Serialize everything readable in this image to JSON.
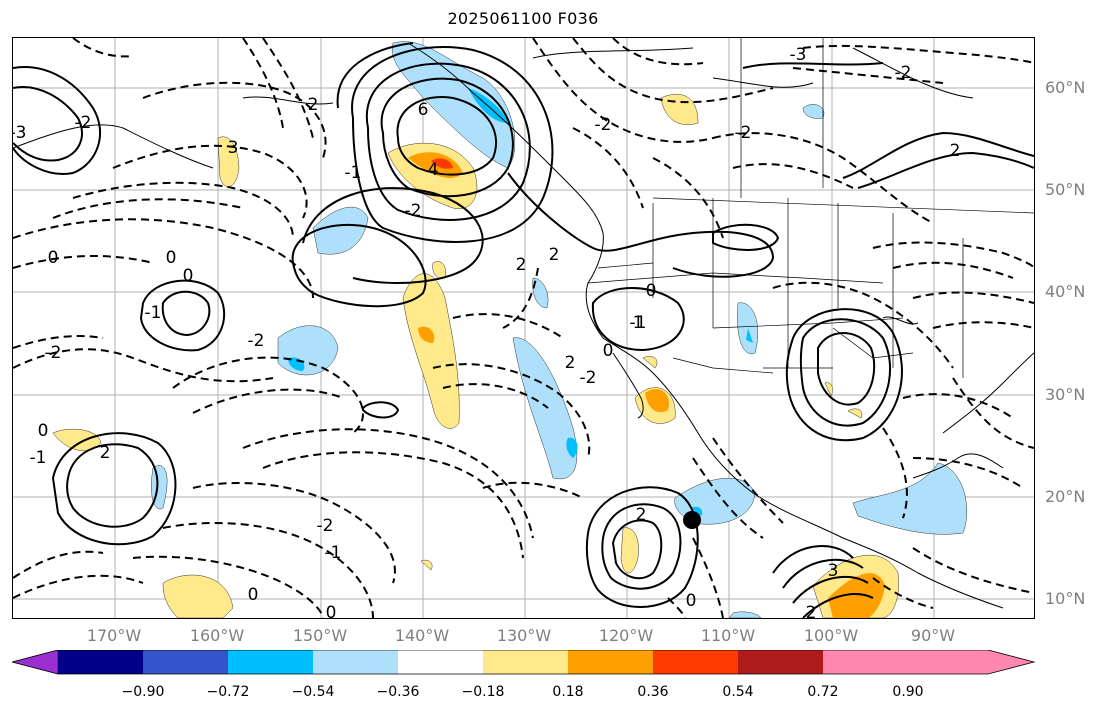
{
  "title": "2025061100 F036",
  "lat_labels": [
    "60°N",
    "50°N",
    "40°N",
    "30°N",
    "20°N",
    "10°N"
  ],
  "lon_labels": [
    "170°W",
    "160°W",
    "150°W",
    "140°W",
    "130°W",
    "120°W",
    "110°W",
    "100°W",
    "90°W"
  ],
  "colorbar": {
    "colors": [
      "#9a30cf",
      "#000088",
      "#3355cc",
      "#00bfff",
      "#aee0fb",
      "#ffffff",
      "#ffe98a",
      "#ffa000",
      "#ff3a00",
      "#b01c1c",
      "#ff87b0"
    ],
    "labels": [
      "−0.90",
      "−0.72",
      "−0.54",
      "−0.36",
      "−0.18",
      "0.18",
      "0.36",
      "0.54",
      "0.72",
      "0.90"
    ]
  },
  "contour_labels": [
    "6",
    "4",
    "2",
    "2",
    "2",
    "0",
    "0",
    "0",
    "0",
    "0",
    "0",
    "-1",
    "-1",
    "-2",
    "-2",
    "-2",
    "-2",
    "-1",
    "-1",
    "2",
    "2",
    "2",
    "1",
    "-2",
    "3",
    "-3",
    "-2",
    "0",
    "-2",
    "-2",
    "-1",
    "-2",
    "2",
    "3",
    "-3",
    "2",
    "0",
    "0"
  ],
  "marker": "storm-center-dot"
}
